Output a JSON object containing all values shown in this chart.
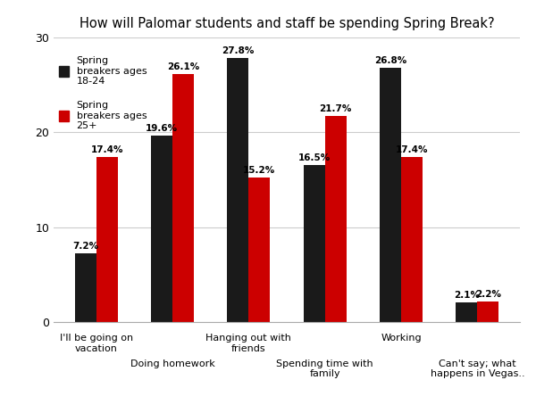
{
  "title": "How will Palomar students and staff be spending Spring Break?",
  "categories": [
    "I'll be going on\nvacation",
    "Doing homework",
    "Hanging out with\nfriends",
    "Spending time with\nfamily",
    "Working",
    "Can't say; what\nhappens in Vegas.."
  ],
  "series": [
    {
      "label": "Spring\nbreakers ages\n18-24",
      "color": "#1a1a1a",
      "values": [
        7.2,
        19.6,
        27.8,
        16.5,
        26.8,
        2.1
      ]
    },
    {
      "label": "Spring\nbreakers ages\n25+",
      "color": "#cc0000",
      "values": [
        17.4,
        26.1,
        15.2,
        21.7,
        17.4,
        2.2
      ]
    }
  ],
  "ylim": [
    0,
    30
  ],
  "yticks": [
    0,
    10,
    20,
    30
  ],
  "bar_width": 0.28,
  "background_color": "#ffffff",
  "grid_color": "#cccccc",
  "title_fontsize": 10.5,
  "label_fontsize": 8,
  "tick_fontsize": 9,
  "value_fontsize": 7.5
}
